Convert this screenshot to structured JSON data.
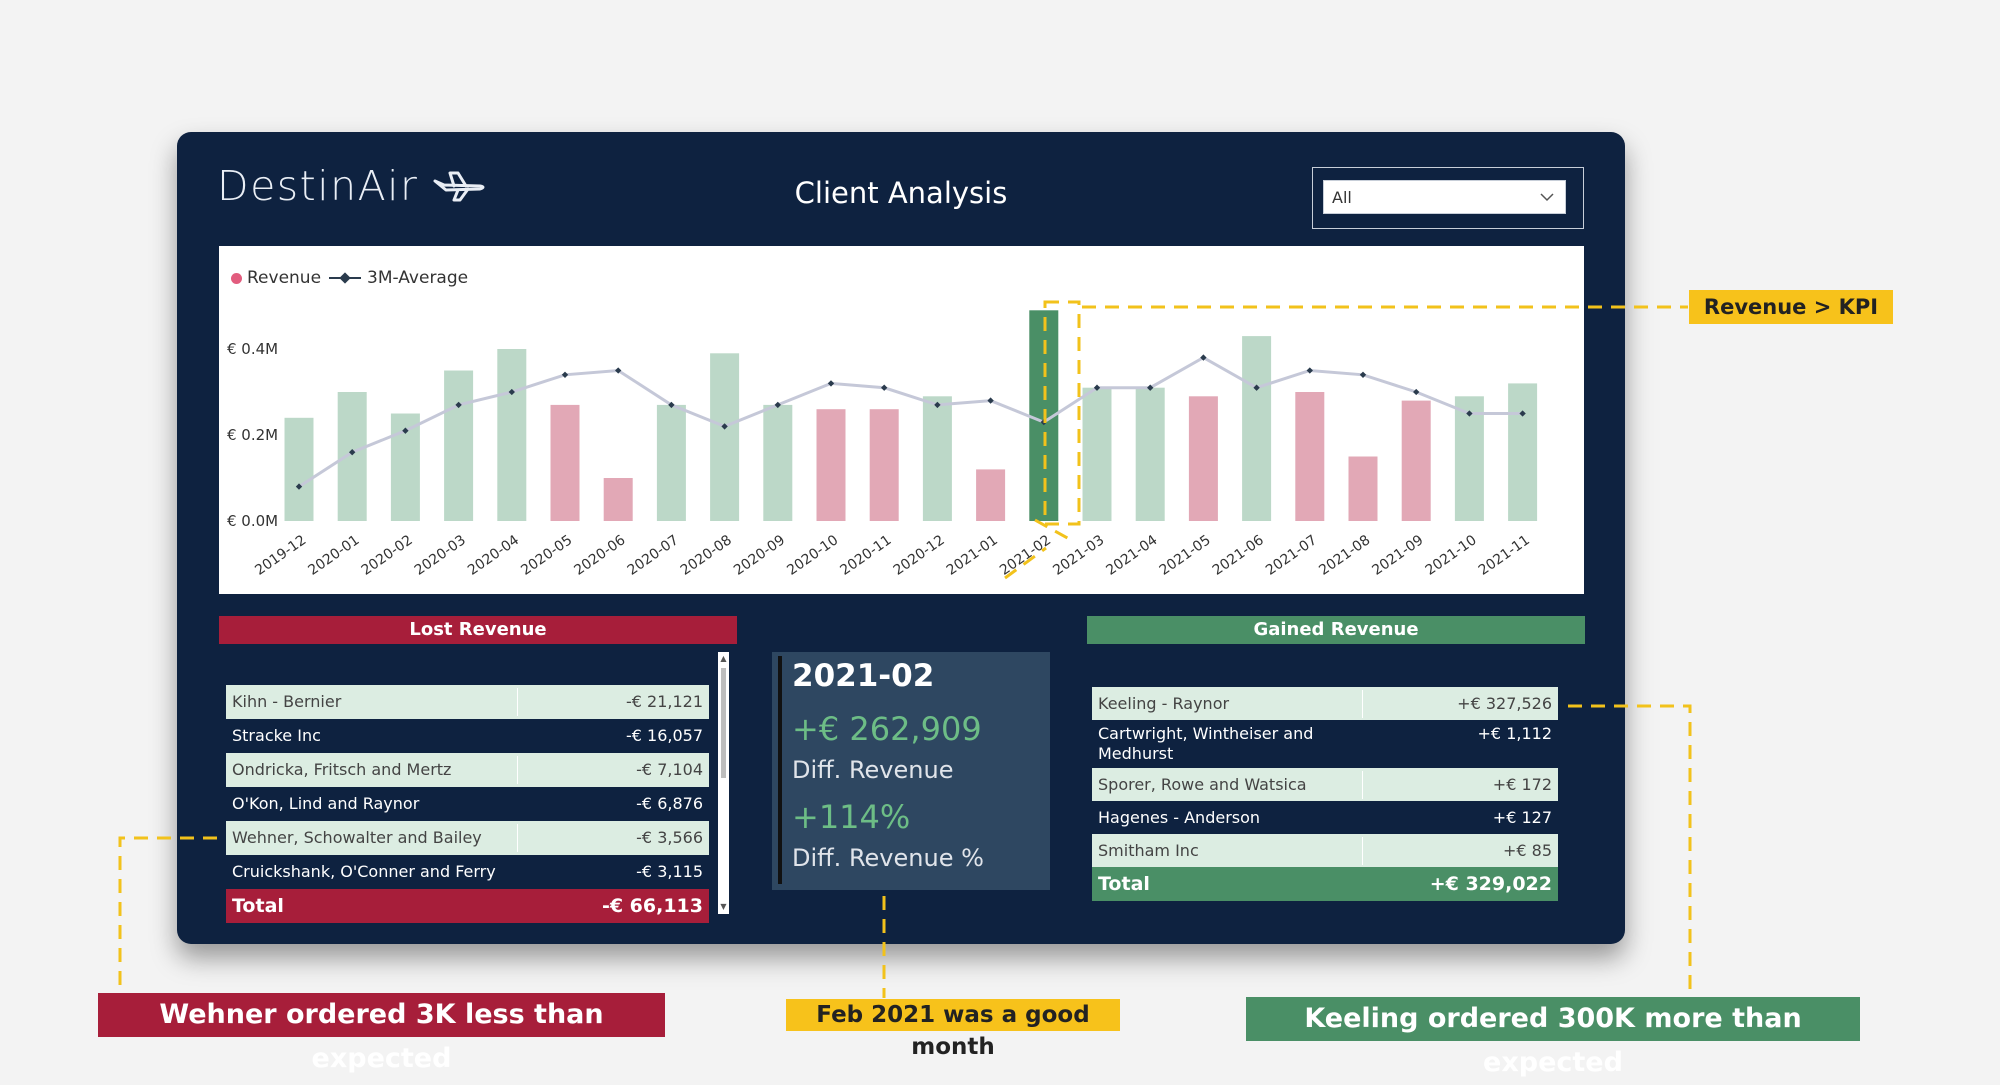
{
  "header": {
    "logo_text": "DestinAir",
    "title": "Client Analysis",
    "slicer_value": "All"
  },
  "chart_data": {
    "type": "bar",
    "legend": [
      "Revenue",
      "3M-Average"
    ],
    "categories": [
      "2019-12",
      "2020-01",
      "2020-02",
      "2020-03",
      "2020-04",
      "2020-05",
      "2020-06",
      "2020-07",
      "2020-08",
      "2020-09",
      "2020-10",
      "2020-11",
      "2020-12",
      "2021-01",
      "2021-02",
      "2021-03",
      "2021-04",
      "2021-05",
      "2021-06",
      "2021-07",
      "2021-08",
      "2021-09",
      "2021-10",
      "2021-11"
    ],
    "series": [
      {
        "name": "Revenue",
        "values": [
          0.24,
          0.3,
          0.25,
          0.35,
          0.4,
          0.27,
          0.1,
          0.27,
          0.39,
          0.27,
          0.26,
          0.26,
          0.29,
          0.12,
          0.49,
          0.31,
          0.31,
          0.29,
          0.43,
          0.3,
          0.15,
          0.28,
          0.29,
          0.32
        ]
      },
      {
        "name": "3M-Average",
        "values": [
          0.08,
          0.16,
          0.21,
          0.27,
          0.3,
          0.34,
          0.35,
          0.27,
          0.22,
          0.27,
          0.32,
          0.31,
          0.27,
          0.28,
          0.23,
          0.31,
          0.31,
          0.38,
          0.31,
          0.35,
          0.34,
          0.3,
          0.25,
          0.25
        ]
      }
    ],
    "bar_colors": [
      "green",
      "green",
      "green",
      "green",
      "green",
      "red",
      "red",
      "green",
      "green",
      "green",
      "red",
      "red",
      "green",
      "red",
      "highlight",
      "green",
      "green",
      "red",
      "green",
      "red",
      "red",
      "red",
      "green",
      "green"
    ],
    "colors": {
      "green": "#bcd8c8",
      "red": "#e2a8b6",
      "highlight": "#4a8f66",
      "line": "#c5c8d8",
      "marker": "#2a3b4d",
      "legend_dot": "#e25c7e"
    },
    "y_ticks": [
      "€ 0.0M",
      "€ 0.2M",
      "€ 0.4M"
    ],
    "ylim": [
      0,
      0.5
    ],
    "y_unit": "€ M",
    "highlight_category": "2021-02"
  },
  "lost_revenue": {
    "header": "Lost Revenue",
    "rows": [
      {
        "name": "Kihn - Bernier",
        "value": "-€ 21,121"
      },
      {
        "name": "Stracke Inc",
        "value": "-€ 16,057"
      },
      {
        "name": "Ondricka, Fritsch and Mertz",
        "value": "-€ 7,104"
      },
      {
        "name": "O'Kon, Lind and Raynor",
        "value": "-€ 6,876"
      },
      {
        "name": "Wehner, Schowalter and Bailey",
        "value": "-€ 3,566"
      },
      {
        "name": "Cruickshank, O'Conner and Ferry",
        "value": "-€ 3,115"
      }
    ],
    "total_label": "Total",
    "total_value": "-€ 66,113"
  },
  "kpi": {
    "month": "2021-02",
    "diff_revenue": "+€ 262,909",
    "diff_revenue_label": "Diff. Revenue",
    "diff_pct": "+114%",
    "diff_pct_label": "Diff. Revenue %"
  },
  "gained_revenue": {
    "header": "Gained Revenue",
    "rows": [
      {
        "name": "Keeling - Raynor",
        "value": "+€ 327,526"
      },
      {
        "name": "Cartwright, Wintheiser and Medhurst",
        "value": "+€ 1,112"
      },
      {
        "name": "Sporer, Rowe and Watsica",
        "value": "+€ 172"
      },
      {
        "name": "Hagenes - Anderson",
        "value": "+€ 127"
      },
      {
        "name": "Smitham Inc",
        "value": "+€ 85"
      }
    ],
    "total_label": "Total",
    "total_value": "+€ 329,022"
  },
  "annotations": {
    "kpi_note": "Revenue > KPI",
    "wehner_note": "Wehner ordered 3K less than expected",
    "feb_note": "Feb 2021 was a good month",
    "keeling_note": "Keeling ordered 300K more than expected"
  },
  "annotation_color": "#f2c21b"
}
